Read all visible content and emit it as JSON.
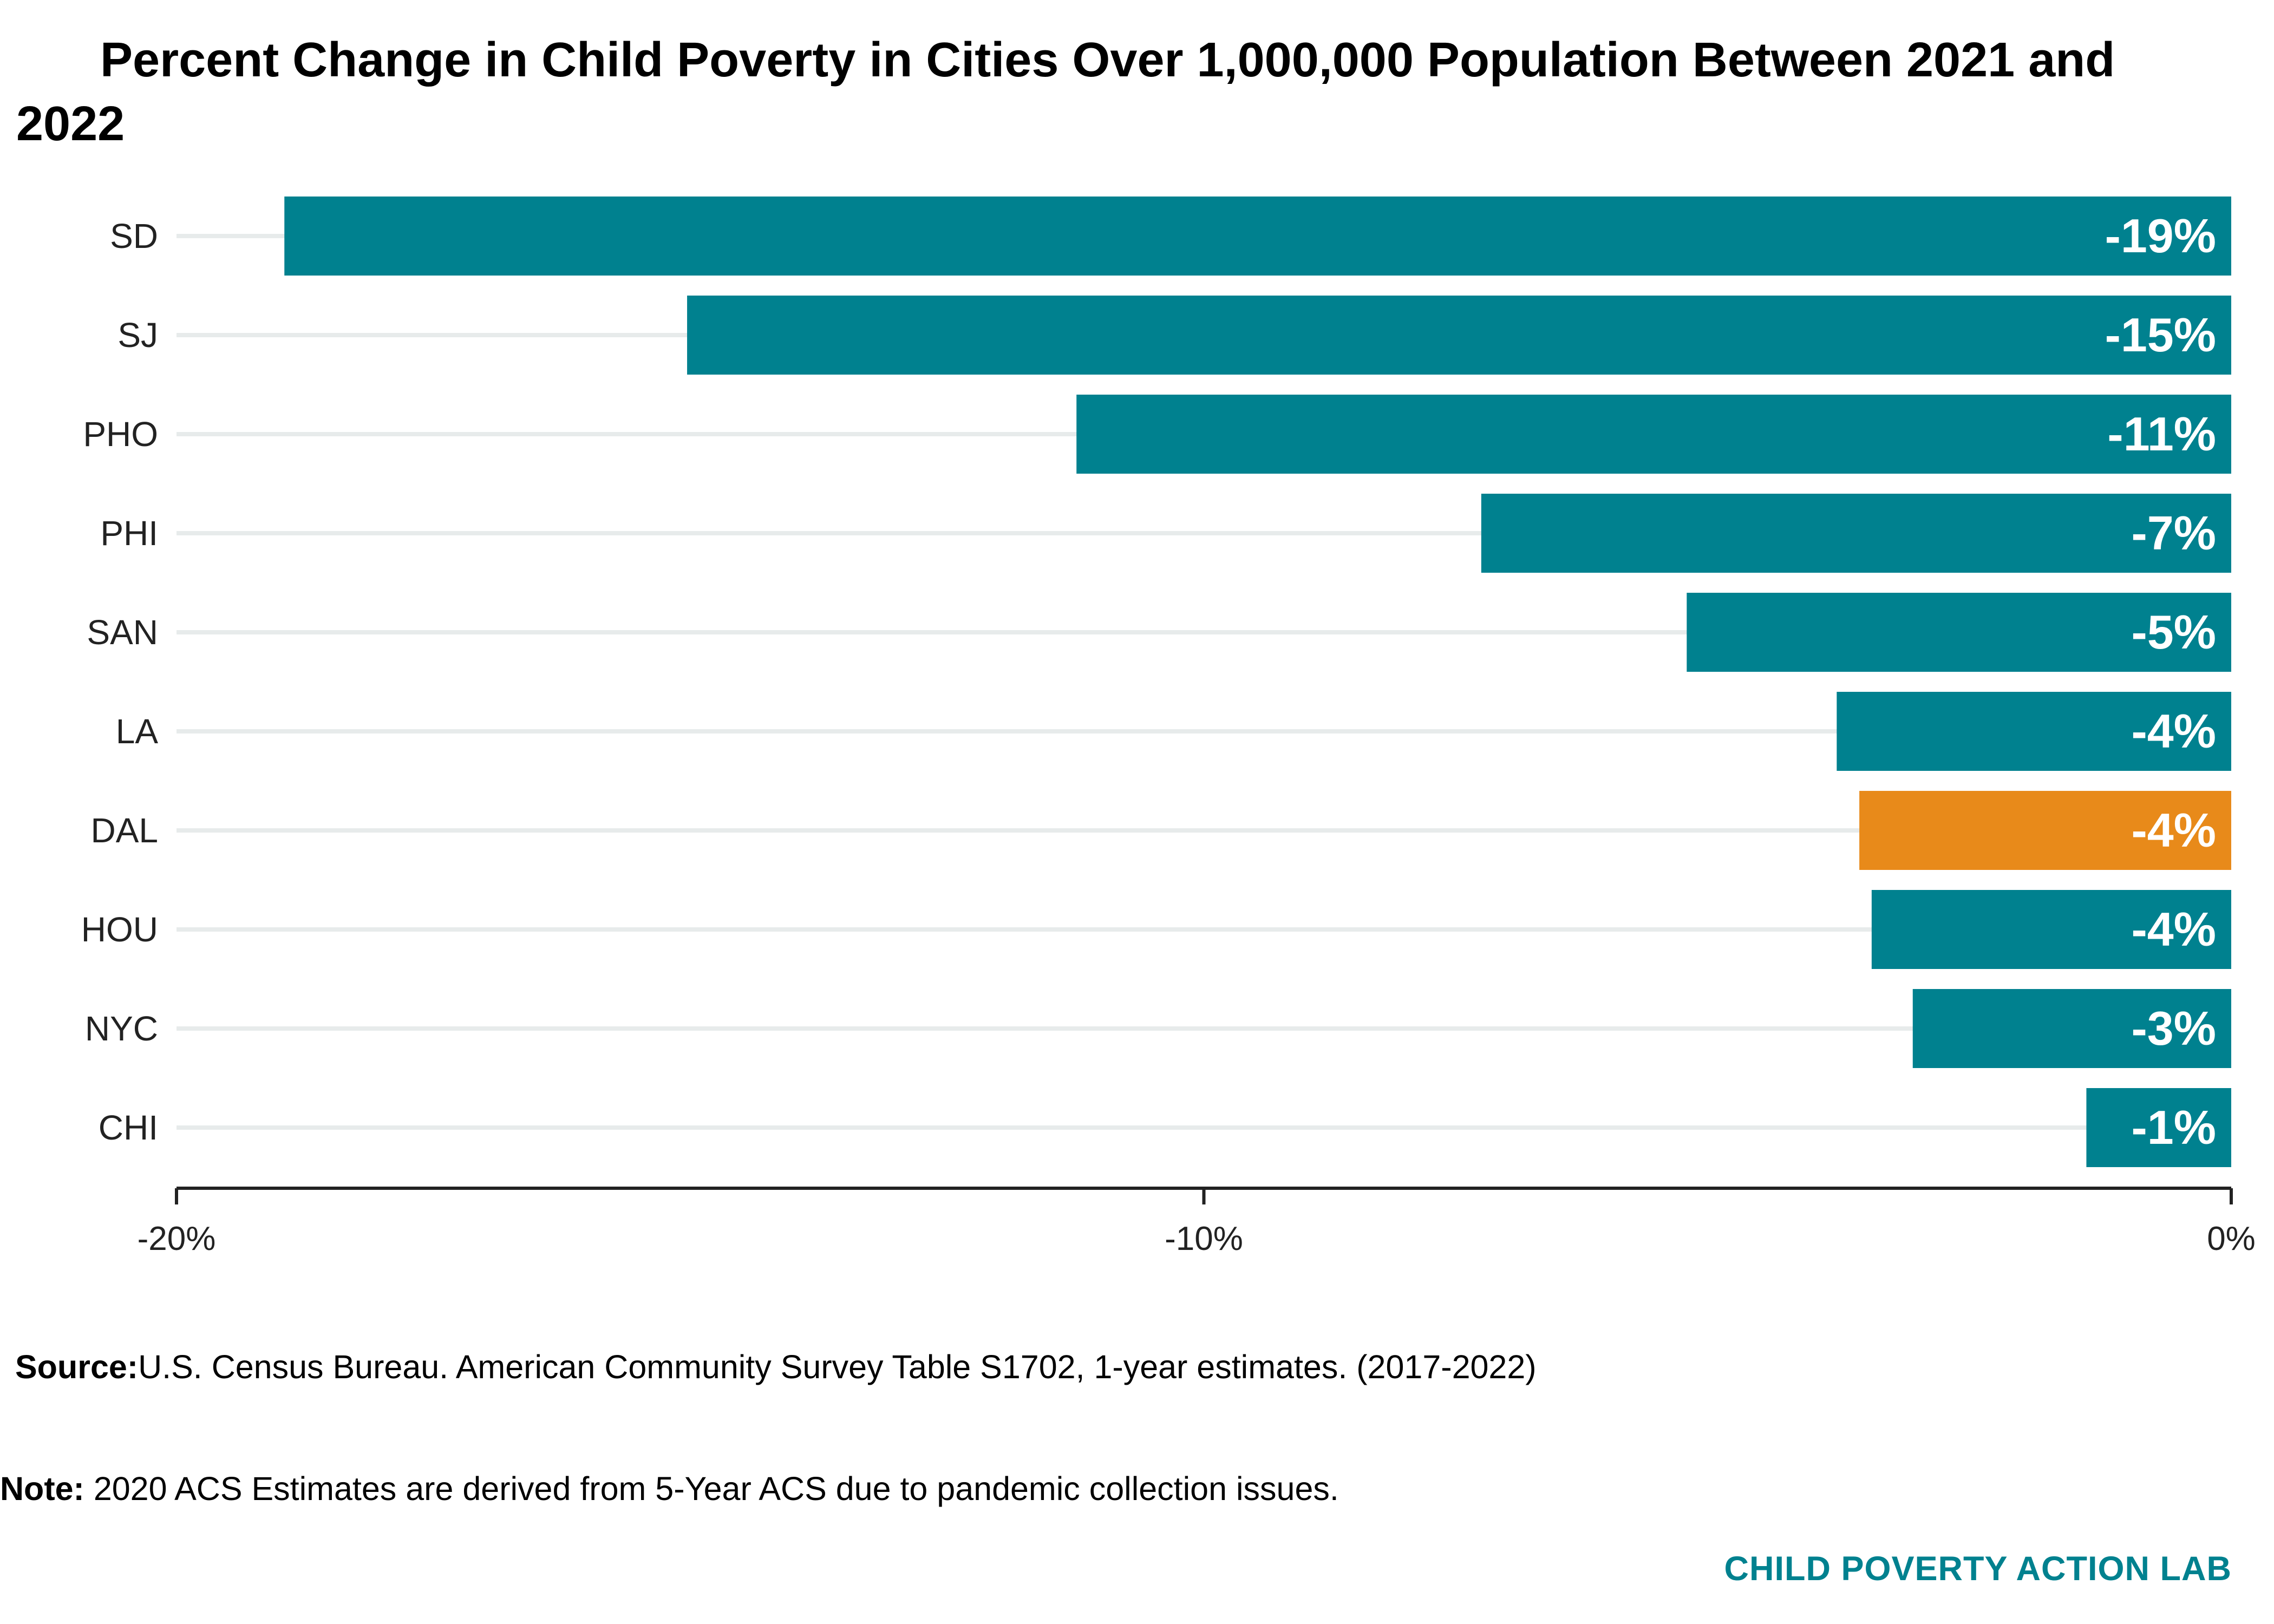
{
  "title": "Percent Change in Child Poverty in Cities Over 1,000,000 Population Between 2021 and 2022",
  "chart_data": {
    "type": "bar",
    "orientation": "horizontal",
    "categories": [
      "SD",
      "SJ",
      "PHO",
      "PHI",
      "SAN",
      "LA",
      "DAL",
      "HOU",
      "NYC",
      "CHI"
    ],
    "values": [
      -18.95,
      -15.03,
      -11.24,
      -7.3,
      -5.3,
      -3.84,
      -3.62,
      -3.5,
      -3.1,
      -1.41
    ],
    "data_labels": [
      "-19%",
      "-15%",
      "-11%",
      "-7%",
      "-5%",
      "-4%",
      "-4%",
      "-4%",
      "-3%",
      "-1%"
    ],
    "highlight_category": "DAL",
    "xlim": [
      -20,
      0
    ],
    "x_ticks": [
      -20,
      -10,
      0
    ],
    "x_tick_labels": [
      "-20%",
      "-10%",
      "0%"
    ],
    "xlabel": "",
    "ylabel": "",
    "grid": "horizontal category guide lines",
    "legend": "none",
    "colors": {
      "bar": "#00818f",
      "highlight": "#e88a1a",
      "gridline": "#e7ebeb",
      "axis": "#222222",
      "label_text": "#ffffff"
    }
  },
  "footer": {
    "source_label": "Source:",
    "source_text": "U.S. Census Bureau. American Community Survey Table S1702, 1-year estimates. (2017-2022)",
    "note_label": "Note:",
    "note_text": " 2020 ACS Estimates are derived from 5-Year ACS due to pandemic collection issues.",
    "brand": "CHILD POVERTY ACTION LAB"
  }
}
